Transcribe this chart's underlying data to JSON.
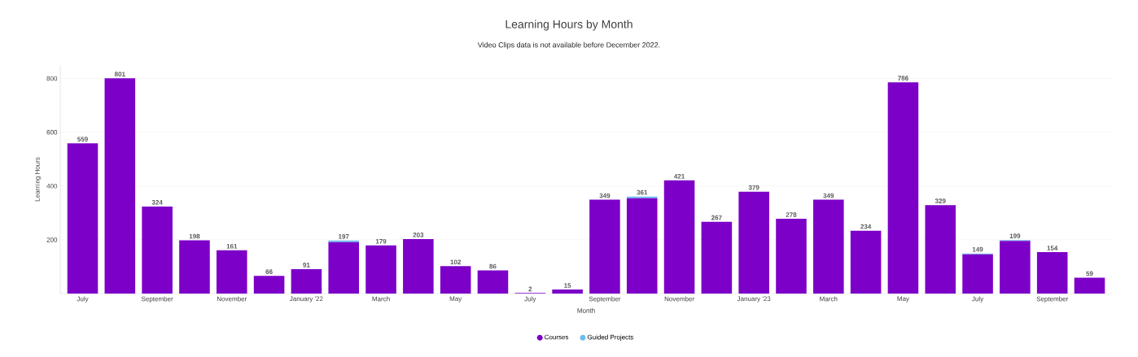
{
  "chart_data": {
    "type": "bar",
    "title": "Learning Hours by Month",
    "subtitle": "Video Clips data is not available before December 2022.",
    "xlabel": "Month",
    "ylabel": "Learning Hours",
    "categories": [
      "July",
      null,
      "September",
      null,
      "November",
      null,
      "January '22",
      null,
      "March",
      null,
      "May",
      null,
      "July",
      null,
      "September",
      null,
      "November",
      null,
      "January '23",
      null,
      "March",
      null,
      "May",
      null,
      "July",
      null,
      "September",
      null
    ],
    "series": [
      {
        "name": "Courses",
        "color": "#7c00c8",
        "values": [
          559,
          801,
          324,
          198,
          161,
          66,
          91,
          191,
          179,
          203,
          102,
          86,
          2,
          15,
          349,
          355,
          421,
          267,
          379,
          278,
          349,
          234,
          786,
          329,
          146,
          196,
          154,
          59
        ]
      },
      {
        "name": "Guided Projects",
        "color": "#6cbcf0",
        "values": [
          0,
          0,
          0,
          0,
          0,
          0,
          0,
          6,
          0,
          0,
          0,
          0,
          0,
          0,
          0,
          6,
          0,
          0,
          0,
          0,
          0,
          0,
          0,
          0,
          3,
          3,
          0,
          0
        ]
      }
    ],
    "totals": [
      "559",
      "801",
      "324",
      "198",
      "161",
      "66",
      "91",
      "197",
      "179",
      "203",
      "102",
      "86",
      "2",
      "15",
      "349",
      "361",
      "421",
      "267",
      "379",
      "278",
      "349",
      "234",
      "786",
      "329",
      "149",
      "199",
      "154",
      "59"
    ],
    "stacked": true,
    "ylim": [
      0,
      850
    ],
    "yticks": [
      200,
      400,
      600,
      800
    ],
    "grid": "y",
    "legend": "bottom"
  }
}
